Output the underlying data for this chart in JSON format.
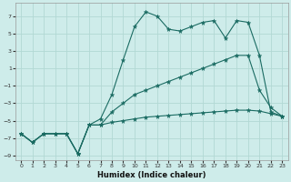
{
  "xlabel": "Humidex (Indice chaleur)",
  "background_color": "#ceecea",
  "grid_color": "#b2d8d4",
  "line_color": "#1a6b62",
  "xlim": [
    -0.5,
    23.5
  ],
  "ylim": [
    -9.5,
    8.5
  ],
  "yticks": [
    -9,
    -7,
    -5,
    -3,
    -1,
    1,
    3,
    5,
    7
  ],
  "xticks": [
    0,
    1,
    2,
    3,
    4,
    5,
    6,
    7,
    8,
    9,
    10,
    11,
    12,
    13,
    14,
    15,
    16,
    17,
    18,
    19,
    20,
    21,
    22,
    23
  ],
  "series": [
    {
      "x": [
        0,
        1,
        2,
        3,
        4,
        5,
        6,
        7,
        8,
        9,
        10,
        11,
        12,
        13,
        14,
        15,
        16,
        17,
        18,
        19,
        20,
        21,
        22,
        23
      ],
      "y": [
        -6.5,
        -7.5,
        -6.5,
        -6.5,
        -6.5,
        -8.8,
        -5.5,
        -4.8,
        -2.0,
        2.0,
        5.8,
        7.5,
        7.0,
        5.5,
        5.3,
        5.8,
        6.3,
        6.5,
        4.5,
        6.5,
        6.3,
        2.5,
        -4.0,
        -4.5
      ]
    },
    {
      "x": [
        0,
        1,
        2,
        3,
        4,
        5,
        6,
        7,
        8,
        9,
        10,
        11,
        12,
        13,
        14,
        15,
        16,
        17,
        18,
        19,
        20,
        21,
        22,
        23
      ],
      "y": [
        -6.5,
        -7.5,
        -6.5,
        -6.5,
        -6.5,
        -8.8,
        -5.5,
        -5.5,
        -4.0,
        -3.0,
        -2.0,
        -1.5,
        -1.0,
        -0.5,
        0.0,
        0.5,
        1.0,
        1.5,
        2.0,
        2.5,
        2.5,
        -1.5,
        -3.5,
        -4.5
      ]
    },
    {
      "x": [
        0,
        1,
        2,
        3,
        4,
        5,
        6,
        7,
        8,
        9,
        10,
        11,
        12,
        13,
        14,
        15,
        16,
        17,
        18,
        19,
        20,
        21,
        22,
        23
      ],
      "y": [
        -6.5,
        -7.5,
        -6.5,
        -6.5,
        -6.5,
        -8.8,
        -5.5,
        -5.5,
        -5.2,
        -5.0,
        -4.8,
        -4.6,
        -4.5,
        -4.4,
        -4.3,
        -4.2,
        -4.1,
        -4.0,
        -3.9,
        -3.8,
        -3.8,
        -3.9,
        -4.2,
        -4.5
      ]
    }
  ]
}
